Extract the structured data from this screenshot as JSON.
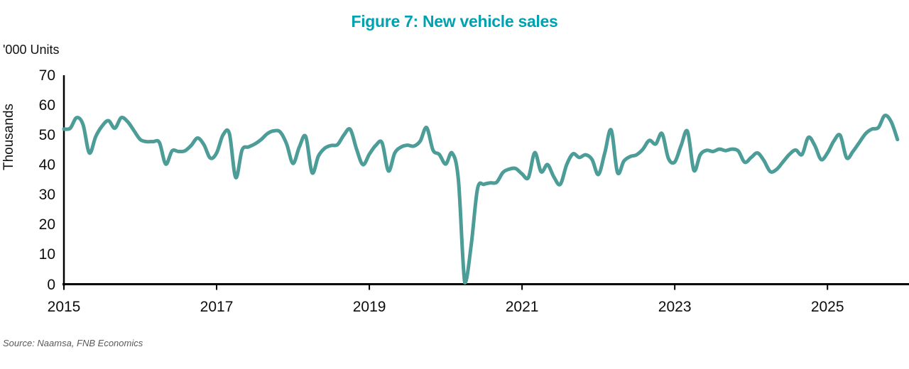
{
  "title": "Figure 7: New vehicle sales",
  "units_label": "'000 Units",
  "y_axis_title": "Thousands",
  "source": "Source: Naamsa, FNB Economics",
  "colors": {
    "title_text": "#00A2B2",
    "line": "#4C9C98",
    "axis": "#000000",
    "tick_text": "#0d0d0d",
    "source_text": "#595959"
  },
  "chart_data": {
    "type": "line",
    "title": "Figure 7: New vehicle sales",
    "ylabel": "Thousands",
    "units": "'000 Units",
    "ylim": [
      0,
      70
    ],
    "y_ticks": [
      0,
      10,
      20,
      30,
      40,
      50,
      60,
      70
    ],
    "x_tick_labels": [
      "2015",
      "2017",
      "2019",
      "2021",
      "2023",
      "2025"
    ],
    "x_tick_years": [
      2015,
      2017,
      2019,
      2021,
      2023,
      2025
    ],
    "frequency": "monthly",
    "x_start": "2015-01",
    "x_end": "2025-12",
    "grid": false,
    "legend_position": "none",
    "line_color": "#4C9C98",
    "series": [
      {
        "name": "New vehicle sales ('000 units)",
        "values": [
          52.0,
          52.3,
          55.8,
          53.5,
          44.0,
          49.5,
          53.0,
          54.8,
          52.3,
          55.8,
          54.5,
          51.5,
          48.5,
          47.8,
          47.8,
          47.5,
          40.3,
          44.7,
          44.5,
          44.7,
          46.5,
          49.0,
          46.8,
          42.3,
          44.0,
          50.0,
          50.5,
          35.8,
          45.0,
          46.0,
          47.0,
          48.5,
          50.5,
          51.4,
          51.0,
          47.0,
          40.5,
          46.0,
          49.5,
          37.4,
          43.0,
          45.6,
          46.5,
          46.8,
          50.0,
          51.9,
          45.2,
          40.1,
          43.6,
          46.5,
          47.4,
          38.0,
          44.0,
          46.0,
          46.6,
          46.3,
          48.0,
          52.5,
          45.0,
          43.5,
          40.3,
          44.0,
          35.0,
          0.6,
          13.0,
          32.0,
          33.5,
          34.0,
          34.2,
          37.5,
          38.6,
          38.8,
          37.0,
          35.8,
          44.1,
          37.7,
          40.1,
          36.0,
          33.5,
          40.0,
          43.7,
          42.5,
          43.4,
          41.8,
          36.8,
          44.0,
          51.7,
          37.5,
          41.3,
          42.8,
          43.4,
          45.3,
          48.2,
          47.0,
          50.5,
          42.2,
          41.0,
          46.5,
          51.2,
          38.2,
          43.4,
          44.9,
          44.5,
          45.3,
          44.8,
          45.3,
          44.6,
          40.9,
          42.5,
          44.0,
          41.5,
          37.8,
          38.5,
          41.0,
          43.5,
          45.0,
          43.5,
          49.2,
          46.5,
          41.8,
          44.0,
          48.0,
          49.9,
          42.4,
          44.5,
          47.5,
          50.5,
          52.0,
          52.5,
          56.5,
          54.5,
          48.5
        ]
      }
    ]
  }
}
